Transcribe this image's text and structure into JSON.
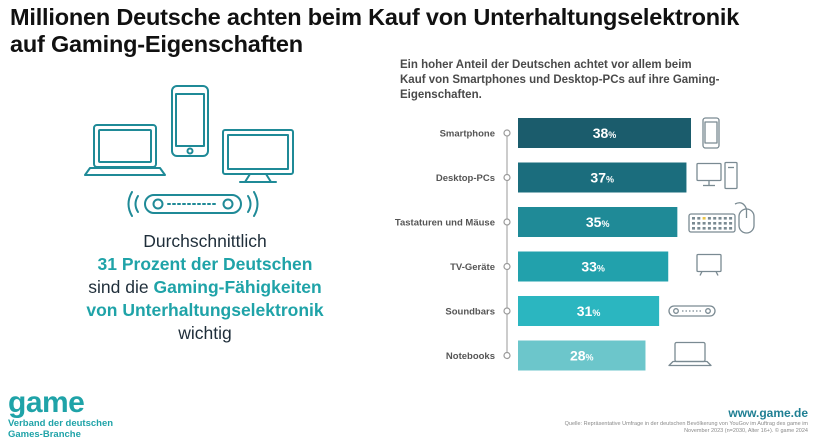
{
  "title_line1": "Millionen Deutsche achten beim Kauf von Unterhaltungselektronik",
  "title_line2": "auf Gaming-Eigenschaften",
  "summary": {
    "line1": "Durchschnittlich",
    "line2": "31 Prozent der Deutschen",
    "line3_pre": "sind die ",
    "line3_hl": "Gaming-Fähigkeiten",
    "line4": "von Unterhaltungselektronik",
    "line5": "wichtig"
  },
  "intro": "Ein hoher Anteil der Deutschen achtet vor allem beim Kauf von Smartphones und Desktop-PCs auf ihre Gaming-Eigenschaften.",
  "colors": {
    "accent": "#1fa3a8",
    "bars": [
      "#1b5c6c",
      "#1b6d7d",
      "#1f8a97",
      "#22a1ac",
      "#2bb6c0",
      "#6cc6cb"
    ]
  },
  "logo": {
    "word": "game",
    "sub1": "Verband der deutschen",
    "sub2": "Games-Branche"
  },
  "website": "www.game.de",
  "source": "Quelle: Repräsentative Umfrage in der deutschen Bevölkerung von YouGov im Auftrag des game im November 2023 (n=2030, Alter 16+). © game 2024",
  "chart_data": {
    "type": "bar",
    "orientation": "horizontal",
    "categories": [
      "Smartphone",
      "Desktop-PCs",
      "Tastaturen und Mäuse",
      "TV-Geräte",
      "Soundbars",
      "Notebooks"
    ],
    "values": [
      38,
      37,
      35,
      33,
      31,
      28
    ],
    "unit": "%",
    "icons": [
      "smartphone-icon",
      "desktop-pc-icon",
      "keyboard-mouse-icon",
      "tv-icon",
      "soundbar-icon",
      "notebook-icon"
    ],
    "xlim": [
      0,
      38
    ]
  }
}
